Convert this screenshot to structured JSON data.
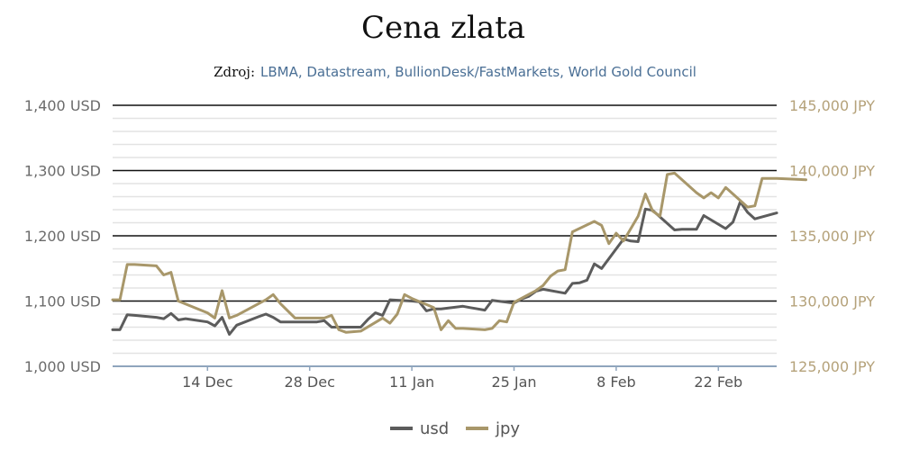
{
  "chart_data": {
    "type": "line",
    "title": "Cena zlata",
    "source_prefix": "Zdroj:",
    "source_text": "LBMA, Datastream, BullionDesk/FastMarkets, World Gold Council",
    "x_start": "2015-12-01",
    "x_ticks": [
      {
        "label": "14 Dec",
        "date": "2015-12-14"
      },
      {
        "label": "28 Dec",
        "date": "2015-12-28"
      },
      {
        "label": "11 Jan",
        "date": "2016-01-11"
      },
      {
        "label": "25 Jan",
        "date": "2016-01-25"
      },
      {
        "label": "8 Feb",
        "date": "2016-02-08"
      },
      {
        "label": "22 Feb",
        "date": "2016-02-22"
      }
    ],
    "y_left": {
      "range": [
        1000,
        1400
      ],
      "major_ticks": [
        1000,
        1100,
        1200,
        1300,
        1400
      ],
      "tick_labels": [
        "1,000 USD",
        "1,100 USD",
        "1,200 USD",
        "1,300 USD",
        "1,400 USD"
      ],
      "minor_step": 20
    },
    "y_right": {
      "range": [
        125000,
        145000
      ],
      "tick_labels": [
        "125,000 JPY",
        "130,000 JPY",
        "135,000 JPY",
        "140,000 JPY",
        "145,000 JPY"
      ]
    },
    "legend": [
      {
        "name": "usd",
        "color": "#5c5c5c"
      },
      {
        "name": "jpy",
        "color": "#a8976a"
      }
    ],
    "series": [
      {
        "name": "usd",
        "axis": "left",
        "color": "#5c5c5c",
        "points": [
          [
            "2015-12-01",
            1056
          ],
          [
            "2015-12-02",
            1056
          ],
          [
            "2015-12-03",
            1079
          ],
          [
            "2015-12-04",
            1078
          ],
          [
            "2015-12-07",
            1075
          ],
          [
            "2015-12-08",
            1073
          ],
          [
            "2015-12-09",
            1081
          ],
          [
            "2015-12-10",
            1071
          ],
          [
            "2015-12-11",
            1073
          ],
          [
            "2015-12-14",
            1068
          ],
          [
            "2015-12-15",
            1062
          ],
          [
            "2015-12-16",
            1075
          ],
          [
            "2015-12-17",
            1049
          ],
          [
            "2015-12-18",
            1063
          ],
          [
            "2015-12-21",
            1076
          ],
          [
            "2015-12-22",
            1080
          ],
          [
            "2015-12-23",
            1075
          ],
          [
            "2015-12-24",
            1068
          ],
          [
            "2015-12-29",
            1068
          ],
          [
            "2015-12-30",
            1070
          ],
          [
            "2015-12-31",
            1060
          ],
          [
            "2016-01-04",
            1060
          ],
          [
            "2016-01-05",
            1072
          ],
          [
            "2016-01-06",
            1082
          ],
          [
            "2016-01-07",
            1078
          ],
          [
            "2016-01-08",
            1102
          ],
          [
            "2016-01-11",
            1100
          ],
          [
            "2016-01-12",
            1099
          ],
          [
            "2016-01-13",
            1085
          ],
          [
            "2016-01-14",
            1088
          ],
          [
            "2016-01-15",
            1088
          ],
          [
            "2016-01-18",
            1092
          ],
          [
            "2016-01-19",
            1090
          ],
          [
            "2016-01-20",
            1088
          ],
          [
            "2016-01-21",
            1086
          ],
          [
            "2016-01-22",
            1101
          ],
          [
            "2016-01-25",
            1097
          ],
          [
            "2016-01-26",
            1103
          ],
          [
            "2016-01-27",
            1107
          ],
          [
            "2016-01-28",
            1115
          ],
          [
            "2016-01-29",
            1118
          ],
          [
            "2016-02-01",
            1112
          ],
          [
            "2016-02-02",
            1127
          ],
          [
            "2016-02-03",
            1128
          ],
          [
            "2016-02-04",
            1132
          ],
          [
            "2016-02-05",
            1157
          ],
          [
            "2016-02-06",
            1150
          ],
          [
            "2016-02-09",
            1195
          ],
          [
            "2016-02-10",
            1192
          ],
          [
            "2016-02-11",
            1191
          ],
          [
            "2016-02-12",
            1241
          ],
          [
            "2016-02-13",
            1239
          ],
          [
            "2016-02-16",
            1209
          ],
          [
            "2016-02-17",
            1210
          ],
          [
            "2016-02-18",
            1210
          ],
          [
            "2016-02-19",
            1210
          ],
          [
            "2016-02-20",
            1231
          ],
          [
            "2016-02-23",
            1211
          ],
          [
            "2016-02-24",
            1221
          ],
          [
            "2016-02-25",
            1252
          ],
          [
            "2016-02-26",
            1236
          ],
          [
            "2016-02-27",
            1226
          ],
          [
            "2016-03-01",
            1235
          ]
        ]
      },
      {
        "name": "jpy",
        "axis": "right",
        "color": "#a8976a",
        "points": [
          [
            "2015-12-01",
            130100
          ],
          [
            "2015-12-02",
            130100
          ],
          [
            "2015-12-03",
            132800
          ],
          [
            "2015-12-04",
            132800
          ],
          [
            "2015-12-07",
            132700
          ],
          [
            "2015-12-08",
            132000
          ],
          [
            "2015-12-09",
            132200
          ],
          [
            "2015-12-10",
            130000
          ],
          [
            "2015-12-14",
            129100
          ],
          [
            "2015-12-15",
            128700
          ],
          [
            "2015-12-16",
            130800
          ],
          [
            "2015-12-17",
            128700
          ],
          [
            "2015-12-18",
            128900
          ],
          [
            "2015-12-22",
            130100
          ],
          [
            "2015-12-23",
            130500
          ],
          [
            "2015-12-24",
            129800
          ],
          [
            "2015-12-26",
            128700
          ],
          [
            "2015-12-30",
            128700
          ],
          [
            "2015-12-31",
            128900
          ],
          [
            "2016-01-01",
            127800
          ],
          [
            "2016-01-02",
            127600
          ],
          [
            "2016-01-04",
            127700
          ],
          [
            "2016-01-07",
            128700
          ],
          [
            "2016-01-08",
            128300
          ],
          [
            "2016-01-09",
            129000
          ],
          [
            "2016-01-10",
            130500
          ],
          [
            "2016-01-11",
            130200
          ],
          [
            "2016-01-14",
            129500
          ],
          [
            "2016-01-15",
            127800
          ],
          [
            "2016-01-16",
            128500
          ],
          [
            "2016-01-17",
            127900
          ],
          [
            "2016-01-18",
            127900
          ],
          [
            "2016-01-21",
            127800
          ],
          [
            "2016-01-22",
            127900
          ],
          [
            "2016-01-23",
            128500
          ],
          [
            "2016-01-24",
            128400
          ],
          [
            "2016-01-25",
            129900
          ],
          [
            "2016-01-26",
            130200
          ],
          [
            "2016-01-28",
            130800
          ],
          [
            "2016-01-29",
            131200
          ],
          [
            "2016-01-30",
            131900
          ],
          [
            "2016-01-31",
            132300
          ],
          [
            "2016-02-01",
            132400
          ],
          [
            "2016-02-02",
            135300
          ],
          [
            "2016-02-05",
            136100
          ],
          [
            "2016-02-06",
            135800
          ],
          [
            "2016-02-07",
            134400
          ],
          [
            "2016-02-08",
            135200
          ],
          [
            "2016-02-09",
            134600
          ],
          [
            "2016-02-11",
            136500
          ],
          [
            "2016-02-12",
            138200
          ],
          [
            "2016-02-13",
            136900
          ],
          [
            "2016-02-14",
            136500
          ],
          [
            "2016-02-15",
            139700
          ],
          [
            "2016-02-16",
            139800
          ],
          [
            "2016-02-19",
            138300
          ],
          [
            "2016-02-20",
            137900
          ],
          [
            "2016-02-21",
            138300
          ],
          [
            "2016-02-22",
            137900
          ],
          [
            "2016-02-23",
            138700
          ],
          [
            "2016-02-26",
            137200
          ],
          [
            "2016-02-27",
            137300
          ],
          [
            "2016-02-28",
            139400
          ],
          [
            "2016-03-01",
            139400
          ],
          [
            "2016-03-05",
            139300
          ]
        ]
      }
    ]
  }
}
